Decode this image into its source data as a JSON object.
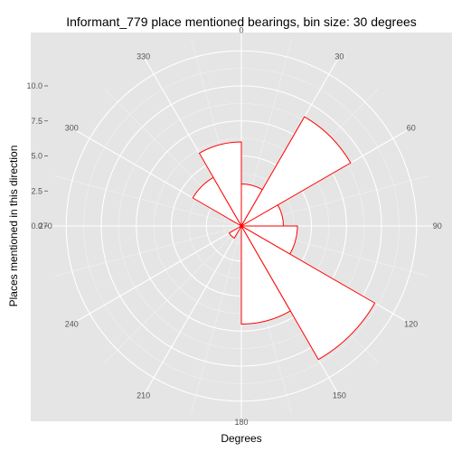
{
  "chart_data": {
    "type": "polar-bar",
    "title": "Informant_779 place mentioned bearings, bin size: 30 degrees",
    "xlabel": "Degrees",
    "ylabel": "Places mentioned in this direction",
    "radial_ticks": [
      "0.0",
      "2.5",
      "5.0",
      "7.5",
      "10.0"
    ],
    "radial_tick_values": [
      0,
      2.5,
      5,
      7.5,
      10
    ],
    "rmax": 12.5,
    "angle_labels": [
      "0",
      "30",
      "60",
      "90",
      "120",
      "150",
      "180",
      "210",
      "240",
      "270",
      "300",
      "330"
    ],
    "bins": [
      {
        "start": 0,
        "end": 30,
        "value": 3
      },
      {
        "start": 30,
        "end": 60,
        "value": 9
      },
      {
        "start": 60,
        "end": 90,
        "value": 3
      },
      {
        "start": 90,
        "end": 120,
        "value": 4
      },
      {
        "start": 120,
        "end": 150,
        "value": 11
      },
      {
        "start": 150,
        "end": 180,
        "value": 7
      },
      {
        "start": 180,
        "end": 210,
        "value": 0
      },
      {
        "start": 210,
        "end": 240,
        "value": 1
      },
      {
        "start": 240,
        "end": 270,
        "value": 0
      },
      {
        "start": 270,
        "end": 300,
        "value": 0
      },
      {
        "start": 300,
        "end": 330,
        "value": 4
      },
      {
        "start": 330,
        "end": 360,
        "value": 6
      }
    ],
    "grid": true,
    "colors": {
      "panel": "#e5e5e5",
      "grid_major": "#ffffff",
      "grid_minor": "#f2f2f2",
      "bar_fill": "#ffffff",
      "bar_stroke": "#ff0000"
    }
  }
}
